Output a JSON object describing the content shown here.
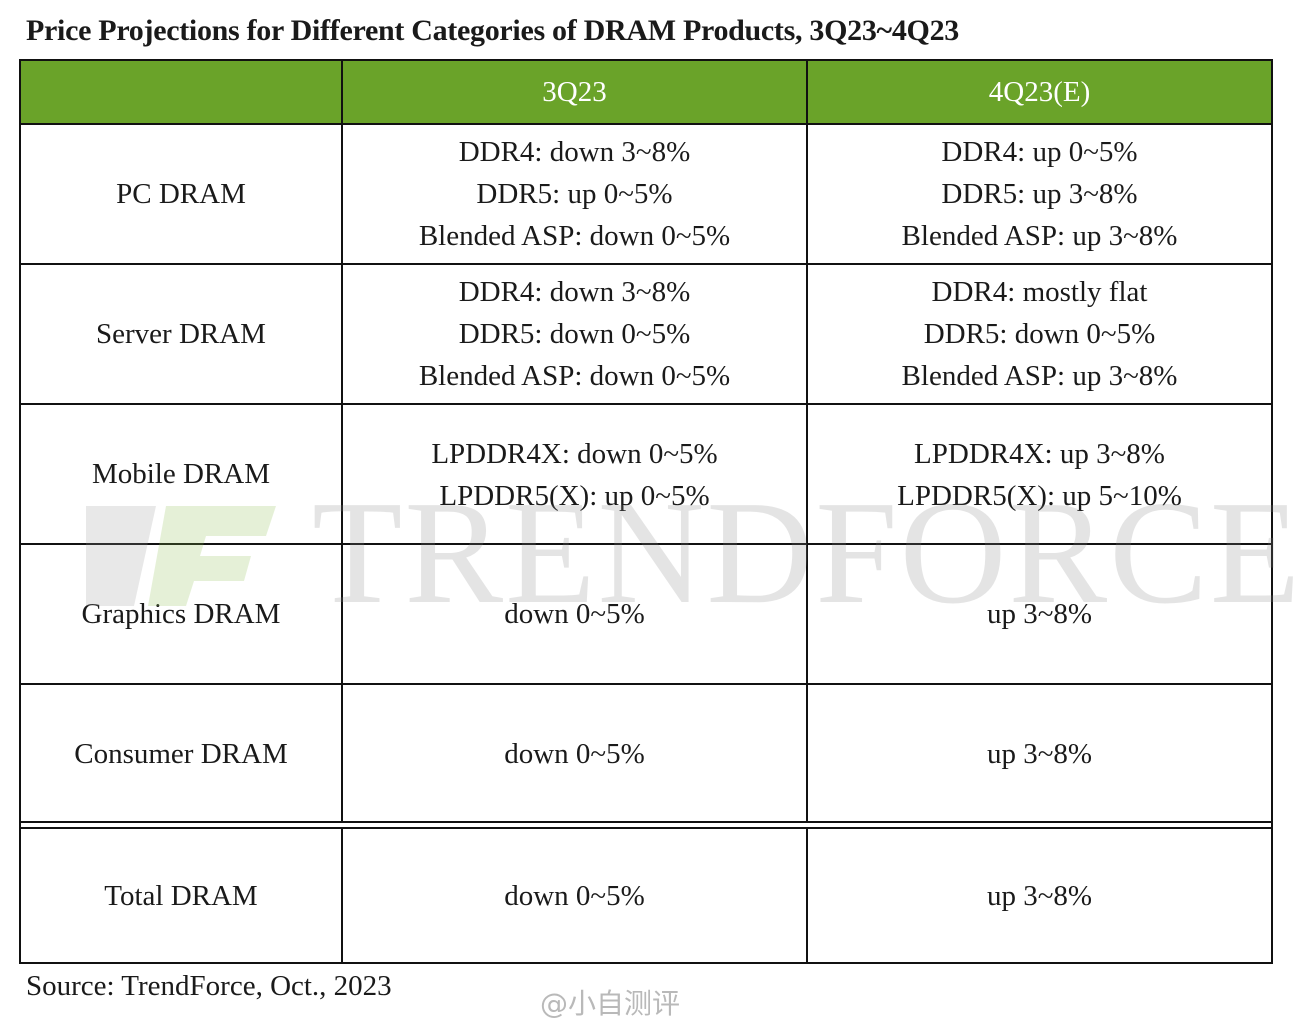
{
  "title": "Price Projections for Different Categories of DRAM Products, 3Q23~4Q23",
  "colors": {
    "header_bg": "#6aa329",
    "header_text": "#ffffff",
    "border": "#111111"
  },
  "table": {
    "columns": [
      "",
      "3Q23",
      "4Q23(E)"
    ],
    "rows": [
      {
        "category": "PC DRAM",
        "q3": [
          "DDR4: down 3~8%",
          "DDR5: up 0~5%",
          "Blended ASP: down 0~5%"
        ],
        "q4": [
          "DDR4: up 0~5%",
          "DDR5:  up 3~8%",
          "Blended ASP: up 3~8%"
        ]
      },
      {
        "category": "Server DRAM",
        "q3": [
          "DDR4: down 3~8%",
          "DDR5: down 0~5%",
          "Blended ASP: down 0~5%"
        ],
        "q4": [
          "DDR4: mostly flat",
          "DDR5: down 0~5%",
          "Blended ASP: up 3~8%"
        ]
      },
      {
        "category": "Mobile DRAM",
        "q3": [
          "LPDDR4X: down 0~5%",
          "LPDDR5(X): up 0~5%"
        ],
        "q4": [
          "LPDDR4X: up 3~8%",
          "LPDDR5(X): up 5~10%"
        ]
      },
      {
        "category": "Graphics DRAM",
        "q3": [
          "down 0~5%"
        ],
        "q4": [
          "up  3~8%"
        ]
      },
      {
        "category": "Consumer DRAM",
        "q3": [
          "down 0~5%"
        ],
        "q4": [
          "up  3~8%"
        ]
      },
      {
        "category": "Total DRAM",
        "q3": [
          "down 0~5%"
        ],
        "q4": [
          "up  3~8%"
        ]
      }
    ]
  },
  "watermark": {
    "logo_text": "TRENDFORCE"
  },
  "source": "Source: TrendForce, Oct.,  2023",
  "weibo_watermark": "@小自测评"
}
